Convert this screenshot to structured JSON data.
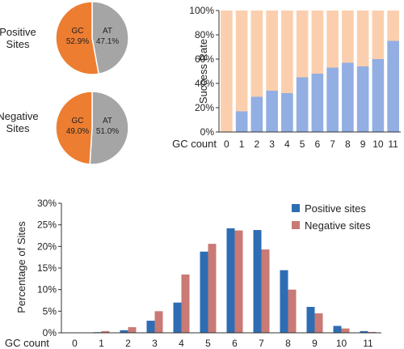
{
  "chart_data": [
    {
      "type": "pie",
      "title": "Positive\nSites",
      "slices": [
        {
          "label": "GC",
          "value": 52.9,
          "value_label": "52.9%",
          "color": "#ed7d31"
        },
        {
          "label": "AT",
          "value": 47.1,
          "value_label": "47.1%",
          "color": "#a5a5a5"
        }
      ]
    },
    {
      "type": "pie",
      "title": "Negative\nSites",
      "slices": [
        {
          "label": "GC",
          "value": 49.0,
          "value_label": "49.0%",
          "color": "#ed7d31"
        },
        {
          "label": "AT",
          "value": 51.0,
          "value_label": "51.0%",
          "color": "#a5a5a5"
        }
      ]
    },
    {
      "type": "bar",
      "stacked": true,
      "categories": [
        "0",
        "1",
        "2",
        "3",
        "4",
        "5",
        "6",
        "7",
        "8",
        "9",
        "10",
        "11"
      ],
      "xlabel": "GC count",
      "ylabel": "Success Rate",
      "ylim": [
        0,
        100
      ],
      "yticks": [
        "0%",
        "20%",
        "40%",
        "60%",
        "80%",
        "100%"
      ],
      "series": [
        {
          "values": [
            0,
            17,
            29,
            34,
            32,
            45,
            48,
            53,
            57,
            54,
            60,
            75
          ],
          "color": "#92aee2"
        },
        {
          "values": [
            100,
            83,
            71,
            66,
            68,
            55,
            52,
            47,
            43,
            46,
            40,
            25
          ],
          "color": "#fbcfae"
        }
      ]
    },
    {
      "type": "bar",
      "categories": [
        "0",
        "1",
        "2",
        "3",
        "4",
        "5",
        "6",
        "7",
        "8",
        "9",
        "10",
        "11"
      ],
      "xlabel": "GC count",
      "ylabel": "Percentage of Sites",
      "ylim": [
        0,
        30
      ],
      "yticks": [
        "0%",
        "5%",
        "10%",
        "15%",
        "20%",
        "25%",
        "30%"
      ],
      "legend": "top-right",
      "series": [
        {
          "name": "Positive sites",
          "color": "#2e6db4",
          "values": [
            0.05,
            0.15,
            0.6,
            2.8,
            7.0,
            18.8,
            24.2,
            23.8,
            14.5,
            6.0,
            1.6,
            0.4
          ]
        },
        {
          "name": "Negative sites",
          "color": "#c97a74",
          "values": [
            0.05,
            0.4,
            1.3,
            5.0,
            13.5,
            20.6,
            23.7,
            19.3,
            10.0,
            4.5,
            1.0,
            0.2
          ]
        }
      ]
    }
  ]
}
